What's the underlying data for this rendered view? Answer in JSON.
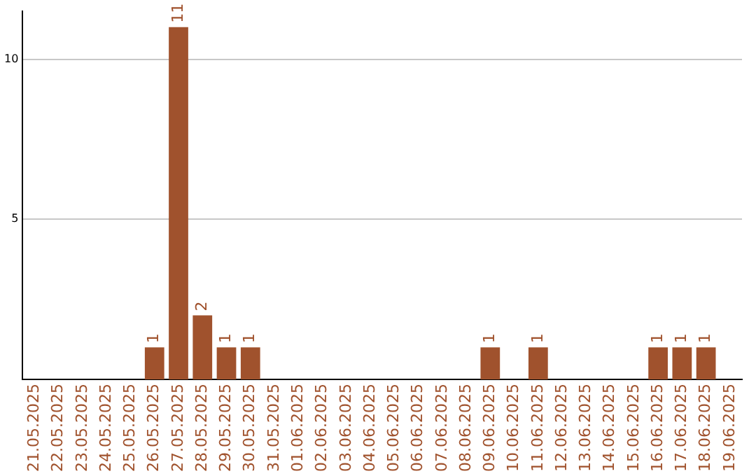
{
  "chart_data": {
    "type": "bar",
    "categories": [
      "21.05.2025",
      "22.05.2025",
      "23.05.2025",
      "24.05.2025",
      "25.05.2025",
      "26.05.2025",
      "27.05.2025",
      "28.05.2025",
      "29.05.2025",
      "30.05.2025",
      "31.05.2025",
      "01.06.2025",
      "02.06.2025",
      "03.06.2025",
      "04.06.2025",
      "05.06.2025",
      "06.06.2025",
      "07.06.2025",
      "08.06.2025",
      "09.06.2025",
      "10.06.2025",
      "11.06.2025",
      "12.06.2025",
      "13.06.2025",
      "14.06.2025",
      "15.06.2025",
      "16.06.2025",
      "17.06.2025",
      "18.06.2025",
      "19.06.2025"
    ],
    "values": [
      0,
      0,
      0,
      0,
      0,
      1,
      11,
      2,
      1,
      1,
      0,
      0,
      0,
      0,
      0,
      0,
      0,
      0,
      0,
      1,
      0,
      1,
      0,
      0,
      0,
      0,
      1,
      1,
      1,
      0
    ],
    "value_labels": [
      null,
      null,
      null,
      null,
      null,
      "1",
      "11",
      "2",
      "1",
      "1",
      null,
      null,
      null,
      null,
      null,
      null,
      null,
      null,
      null,
      "1",
      null,
      "1",
      null,
      null,
      null,
      null,
      "1",
      "1",
      "1",
      null
    ],
    "color": "#a0522d",
    "ylim": [
      0,
      11.5
    ],
    "yticks": [
      5,
      10
    ],
    "grid": "y",
    "legend": false
  }
}
